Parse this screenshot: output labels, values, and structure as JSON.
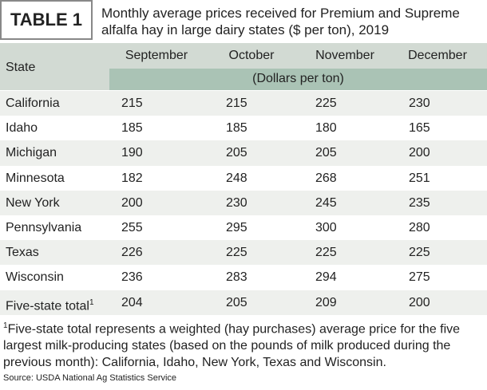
{
  "header": {
    "label": "TABLE 1",
    "title": "Monthly average prices received for Premium and Supreme alfalfa hay in large dairy states ($ per ton), 2019"
  },
  "table": {
    "columns": [
      "State",
      "September",
      "October",
      "November",
      "December"
    ],
    "unit": "(Dollars per ton)",
    "rows": [
      [
        "California",
        215,
        215,
        225,
        230
      ],
      [
        "Idaho",
        185,
        185,
        180,
        165
      ],
      [
        "Michigan",
        190,
        205,
        205,
        200
      ],
      [
        "Minnesota",
        182,
        248,
        268,
        251
      ],
      [
        "New York",
        200,
        230,
        245,
        235
      ],
      [
        "Pennsylvania",
        255,
        295,
        300,
        280
      ],
      [
        "Texas",
        226,
        225,
        225,
        225
      ],
      [
        "Wisconsin",
        236,
        283,
        294,
        275
      ],
      [
        "Five-state total",
        204,
        205,
        209,
        200
      ]
    ],
    "total_mark": "1"
  },
  "footnote": {
    "mark": "1",
    "text": "Five-state total represents a weighted (hay purchases) average price for the five largest milk-producing states (based on the pounds of milk produced during the previous month): California, Idaho, New York, Texas and Wisconsin."
  },
  "source": "Source: USDA National Ag Statistics Service"
}
